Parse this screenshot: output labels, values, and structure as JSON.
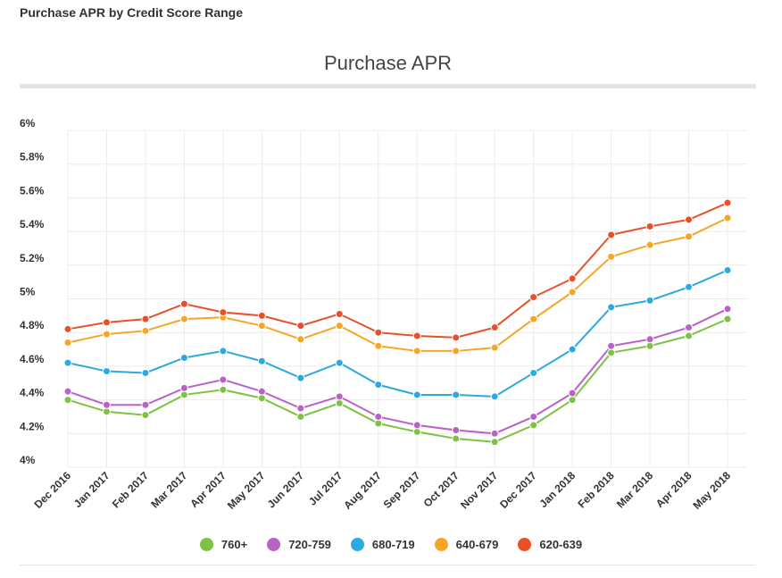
{
  "page_heading": "Purchase APR by Credit Score Range",
  "chart_data": {
    "type": "line",
    "title": "Purchase APR",
    "xlabel": "",
    "ylabel": "",
    "categories": [
      "Dec 2016",
      "Jan 2017",
      "Feb 2017",
      "Mar 2017",
      "Apr 2017",
      "May 2017",
      "Jun 2017",
      "Jul 2017",
      "Aug 2017",
      "Sep 2017",
      "Oct 2017",
      "Nov 2017",
      "Dec 2017",
      "Jan 2018",
      "Feb 2018",
      "Mar 2018",
      "Apr 2018",
      "May 2018"
    ],
    "ylim": [
      4,
      6
    ],
    "yticks": [
      4,
      4.2,
      4.4,
      4.6,
      4.8,
      5,
      5.2,
      5.4,
      5.6,
      5.8,
      6
    ],
    "ytick_labels": [
      "4%",
      "4.2%",
      "4.4%",
      "4.6%",
      "4.8%",
      "5%",
      "5.2%",
      "5.4%",
      "5.6%",
      "5.8%",
      "6%"
    ],
    "grid": true,
    "legend_position": "bottom",
    "series": [
      {
        "name": "760+",
        "color": "#7dc242",
        "values": [
          4.4,
          4.33,
          4.31,
          4.43,
          4.46,
          4.41,
          4.3,
          4.38,
          4.26,
          4.21,
          4.17,
          4.15,
          4.25,
          4.4,
          4.68,
          4.72,
          4.78,
          4.88
        ]
      },
      {
        "name": "720-759",
        "color": "#b862c6",
        "values": [
          4.45,
          4.37,
          4.37,
          4.47,
          4.52,
          4.45,
          4.35,
          4.42,
          4.3,
          4.25,
          4.22,
          4.2,
          4.3,
          4.44,
          4.72,
          4.76,
          4.83,
          4.94
        ]
      },
      {
        "name": "680-719",
        "color": "#2ba9e0",
        "values": [
          4.62,
          4.57,
          4.56,
          4.65,
          4.69,
          4.63,
          4.53,
          4.62,
          4.49,
          4.43,
          4.43,
          4.42,
          4.56,
          4.7,
          4.95,
          4.99,
          5.07,
          5.17
        ]
      },
      {
        "name": "640-679",
        "color": "#f6a623",
        "values": [
          4.74,
          4.79,
          4.81,
          4.88,
          4.89,
          4.84,
          4.76,
          4.84,
          4.72,
          4.69,
          4.69,
          4.71,
          4.88,
          5.04,
          5.25,
          5.32,
          5.37,
          5.48
        ]
      },
      {
        "name": "620-639",
        "color": "#e8502a",
        "values": [
          4.82,
          4.86,
          4.88,
          4.97,
          4.92,
          4.9,
          4.84,
          4.91,
          4.8,
          4.78,
          4.77,
          4.83,
          5.01,
          5.12,
          5.38,
          5.43,
          5.47,
          5.57
        ]
      }
    ]
  }
}
